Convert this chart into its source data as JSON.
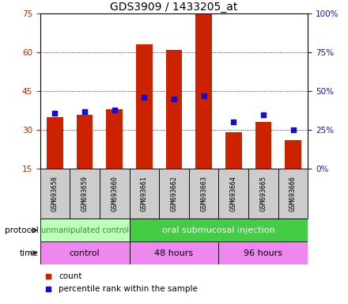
{
  "title": "GDS3909 / 1433205_at",
  "samples": [
    "GSM693658",
    "GSM693659",
    "GSM693660",
    "GSM693661",
    "GSM693662",
    "GSM693663",
    "GSM693664",
    "GSM693665",
    "GSM693666"
  ],
  "counts": [
    35,
    36,
    38,
    63,
    61,
    75,
    29,
    33,
    26
  ],
  "percentile_ranks": [
    36,
    37,
    38,
    46,
    45,
    47,
    30,
    35,
    25
  ],
  "ylim_left": [
    15,
    75
  ],
  "ylim_right": [
    0,
    100
  ],
  "yticks_left": [
    15,
    30,
    45,
    60,
    75
  ],
  "yticks_right": [
    0,
    25,
    50,
    75,
    100
  ],
  "bar_color": "#cc2200",
  "dot_color": "#1111cc",
  "bar_width": 0.55,
  "protocol_labels": [
    "unmanipulated control",
    "oral submucosal injection"
  ],
  "protocol_spans_samples": [
    3,
    6
  ],
  "protocol_color_light": "#bbffbb",
  "protocol_color_dark": "#44cc44",
  "time_labels": [
    "control",
    "48 hours",
    "96 hours"
  ],
  "time_spans_samples": [
    3,
    3,
    3
  ],
  "time_color": "#ee88ee",
  "legend_count_color": "#cc2200",
  "legend_dot_color": "#1111cc",
  "left_tick_color": "#cc2200",
  "right_tick_color": "#1111cc",
  "title_fontsize": 10,
  "tick_fontsize": 7.5,
  "sample_fontsize": 6.0,
  "proto_fontsize": 7.0,
  "time_fontsize": 8.0,
  "legend_fontsize": 7.5
}
